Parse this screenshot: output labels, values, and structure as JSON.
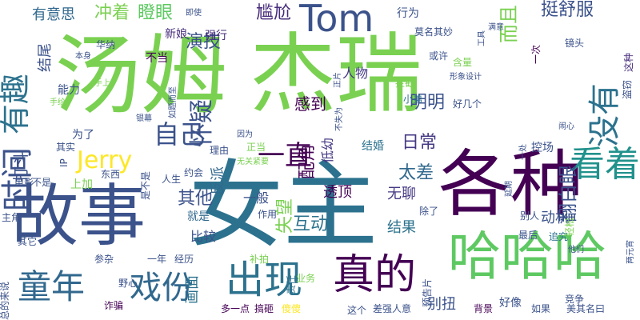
{
  "words": [
    {
      "text": "汤姆",
      "color": "#7ad151"
    },
    {
      "text": "杰瑞",
      "color": "#7ad151"
    },
    {
      "text": "女主",
      "color": "#2c728e"
    },
    {
      "text": "故事",
      "color": "#3b528b"
    },
    {
      "text": "各种",
      "color": "#440154"
    },
    {
      "text": "哈哈哈",
      "color": "#5ec962"
    },
    {
      "text": "看着",
      "color": "#21918c"
    },
    {
      "text": "Tom",
      "color": "#3b528b"
    },
    {
      "text": "有趣",
      "color": "#2c728e"
    },
    {
      "text": "时间",
      "color": "#3b528b"
    },
    {
      "text": "没有",
      "color": "#2c728e"
    },
    {
      "text": "出现",
      "color": "#2c728e"
    },
    {
      "text": "真的",
      "color": "#440154"
    },
    {
      "text": "童年",
      "color": "#31688e"
    },
    {
      "text": "戏份",
      "color": "#31688e"
    },
    {
      "text": "自己",
      "color": "#3b528b"
    },
    {
      "text": "Jerry",
      "color": "#fde725"
    },
    {
      "text": "怀疑",
      "color": "#3b528b"
    },
    {
      "text": "一直",
      "color": "#440154"
    },
    {
      "text": "尴尬",
      "color": "#472d7b"
    },
    {
      "text": "演技",
      "color": "#3b528b"
    },
    {
      "text": "瞪眼",
      "color": "#5ec962"
    },
    {
      "text": "冲着",
      "color": "#7ad151"
    },
    {
      "text": "明明",
      "color": "#3b528b"
    },
    {
      "text": "而且",
      "color": "#7ad151"
    },
    {
      "text": "挺舒服",
      "color": "#3b528b"
    },
    {
      "text": "有意思",
      "color": "#31688e"
    },
    {
      "text": "结尾",
      "color": "#3b528b"
    },
    {
      "text": "感到",
      "color": "#440154"
    },
    {
      "text": "人物",
      "color": "#443983"
    },
    {
      "text": "日常",
      "color": "#443983"
    },
    {
      "text": "翻白眼",
      "color": "#3b528b"
    },
    {
      "text": "配角",
      "color": "#440154"
    },
    {
      "text": "太差",
      "color": "#31688e"
    },
    {
      "text": "打斗",
      "color": "#3b528b"
    },
    {
      "text": "其他",
      "color": "#3b528b"
    },
    {
      "text": "失望",
      "color": "#7ad151"
    },
    {
      "text": "透顶",
      "color": "#440154"
    },
    {
      "text": "无聊",
      "color": "#443983"
    },
    {
      "text": "互动",
      "color": "#2c728e"
    },
    {
      "text": "结果",
      "color": "#2c728e"
    },
    {
      "text": "动机",
      "color": "#3b528b"
    },
    {
      "text": "别扭",
      "color": "#3b528b"
    },
    {
      "text": "比较",
      "color": "#3b528b"
    },
    {
      "text": "画面",
      "color": "#2c728e"
    },
    {
      "text": "反派",
      "color": "#31688e"
    },
    {
      "text": "低幼",
      "color": "#443983"
    },
    {
      "text": "一般",
      "color": "#3b528b"
    },
    {
      "text": "能力",
      "color": "#3b528b"
    },
    {
      "text": "新娘",
      "color": "#472d7b"
    },
    {
      "text": "强行",
      "color": "#472d7b"
    },
    {
      "text": "不当",
      "color": "#440154"
    },
    {
      "text": "行为",
      "color": "#3b528b"
    },
    {
      "text": "莫名其妙",
      "color": "#3b528b"
    },
    {
      "text": "一次",
      "color": "#440154"
    },
    {
      "text": "镜头",
      "color": "#3b528b"
    },
    {
      "text": "盗窃",
      "color": "#3b528b"
    },
    {
      "text": "这种",
      "color": "#472d7b"
    },
    {
      "text": "拦截",
      "color": "#7ad151"
    },
    {
      "text": "小弟",
      "color": "#2c728e"
    },
    {
      "text": "结婚",
      "color": "#2c728e"
    },
    {
      "text": "控场",
      "color": "#3b528b"
    },
    {
      "text": "追究",
      "color": "#2c728e"
    },
    {
      "text": "轻松",
      "color": "#7ad151"
    },
    {
      "text": "上加",
      "color": "#7ad151"
    },
    {
      "text": "东西",
      "color": "#3b528b"
    },
    {
      "text": "就是",
      "color": "#31688e"
    },
    {
      "text": "作用",
      "color": "#3b528b"
    },
    {
      "text": "除了",
      "color": "#3b528b"
    },
    {
      "text": "别人",
      "color": "#3b528b"
    },
    {
      "text": "最后",
      "color": "#3b528b"
    },
    {
      "text": "补拍",
      "color": "#7ad151"
    },
    {
      "text": "业务",
      "color": "#7ad151"
    },
    {
      "text": "责任",
      "color": "#2c728e"
    },
    {
      "text": "预告片",
      "color": "#3b528b"
    },
    {
      "text": "好像",
      "color": "#3b528b"
    },
    {
      "text": "竞争",
      "color": "#3b528b"
    },
    {
      "text": "诈骗",
      "color": "#440154"
    },
    {
      "text": "野心",
      "color": "#3b528b"
    },
    {
      "text": "经历",
      "color": "#3b528b"
    },
    {
      "text": "一年",
      "color": "#3b528b"
    },
    {
      "text": "多一点",
      "color": "#440154"
    },
    {
      "text": "搞砸",
      "color": "#440154"
    },
    {
      "text": "傻傻",
      "color": "#fde725"
    },
    {
      "text": "这个",
      "color": "#3b528b"
    },
    {
      "text": "差强人意",
      "color": "#3b528b"
    },
    {
      "text": "背景",
      "color": "#440154"
    },
    {
      "text": "如果",
      "color": "#3b528b"
    },
    {
      "text": "美其名曰",
      "color": "#3b528b"
    },
    {
      "text": "总的来说",
      "color": "#3b528b"
    },
    {
      "text": "主角",
      "color": "#3b528b"
    },
    {
      "text": "其它",
      "color": "#3b528b"
    },
    {
      "text": "参杂",
      "color": "#3b528b"
    },
    {
      "text": "电影",
      "color": "#3b528b"
    },
    {
      "text": "不是",
      "color": "#3b528b"
    },
    {
      "text": "IP",
      "color": "#3b528b"
    },
    {
      "text": "其实",
      "color": "#3b528b"
    },
    {
      "text": "为了",
      "color": "#3b528b"
    },
    {
      "text": "手绘",
      "color": "#7ad151"
    },
    {
      "text": "本身",
      "color": "#3b528b"
    },
    {
      "text": "手上",
      "color": "#7ad151"
    },
    {
      "text": "华纳",
      "color": "#3b528b"
    },
    {
      "text": "银幕",
      "color": "#3b528b"
    },
    {
      "text": "是不是",
      "color": "#3b528b"
    },
    {
      "text": "人生",
      "color": "#3b528b"
    },
    {
      "text": "约会",
      "color": "#3b528b"
    },
    {
      "text": "理由",
      "color": "#3b528b"
    },
    {
      "text": "正当",
      "color": "#7ad151"
    },
    {
      "text": "无关紧要",
      "color": "#7ad151"
    },
    {
      "text": "因为",
      "color": "#3b528b"
    },
    {
      "text": "不失为",
      "color": "#3b528b"
    },
    {
      "text": "好几个",
      "color": "#3b528b"
    },
    {
      "text": "正片",
      "color": "#3b528b"
    },
    {
      "text": "或许",
      "color": "#3b528b"
    },
    {
      "text": "含量",
      "color": "#7ad151"
    },
    {
      "text": "即使",
      "color": "#3b528b"
    },
    {
      "text": "工具",
      "color": "#3b528b"
    },
    {
      "text": "满意",
      "color": "#3b528b"
    },
    {
      "text": "形象设计",
      "color": "#3b528b"
    },
    {
      "text": "如题而至",
      "color": "#3b528b"
    },
    {
      "text": "一处",
      "color": "#3b528b"
    },
    {
      "text": "闹心",
      "color": "#3b528b"
    },
    {
      "text": "延期",
      "color": "#3b528b"
    },
    {
      "text": "他们",
      "color": "#3b528b"
    },
    {
      "text": "两元宵",
      "color": "#3b528b"
    }
  ]
}
